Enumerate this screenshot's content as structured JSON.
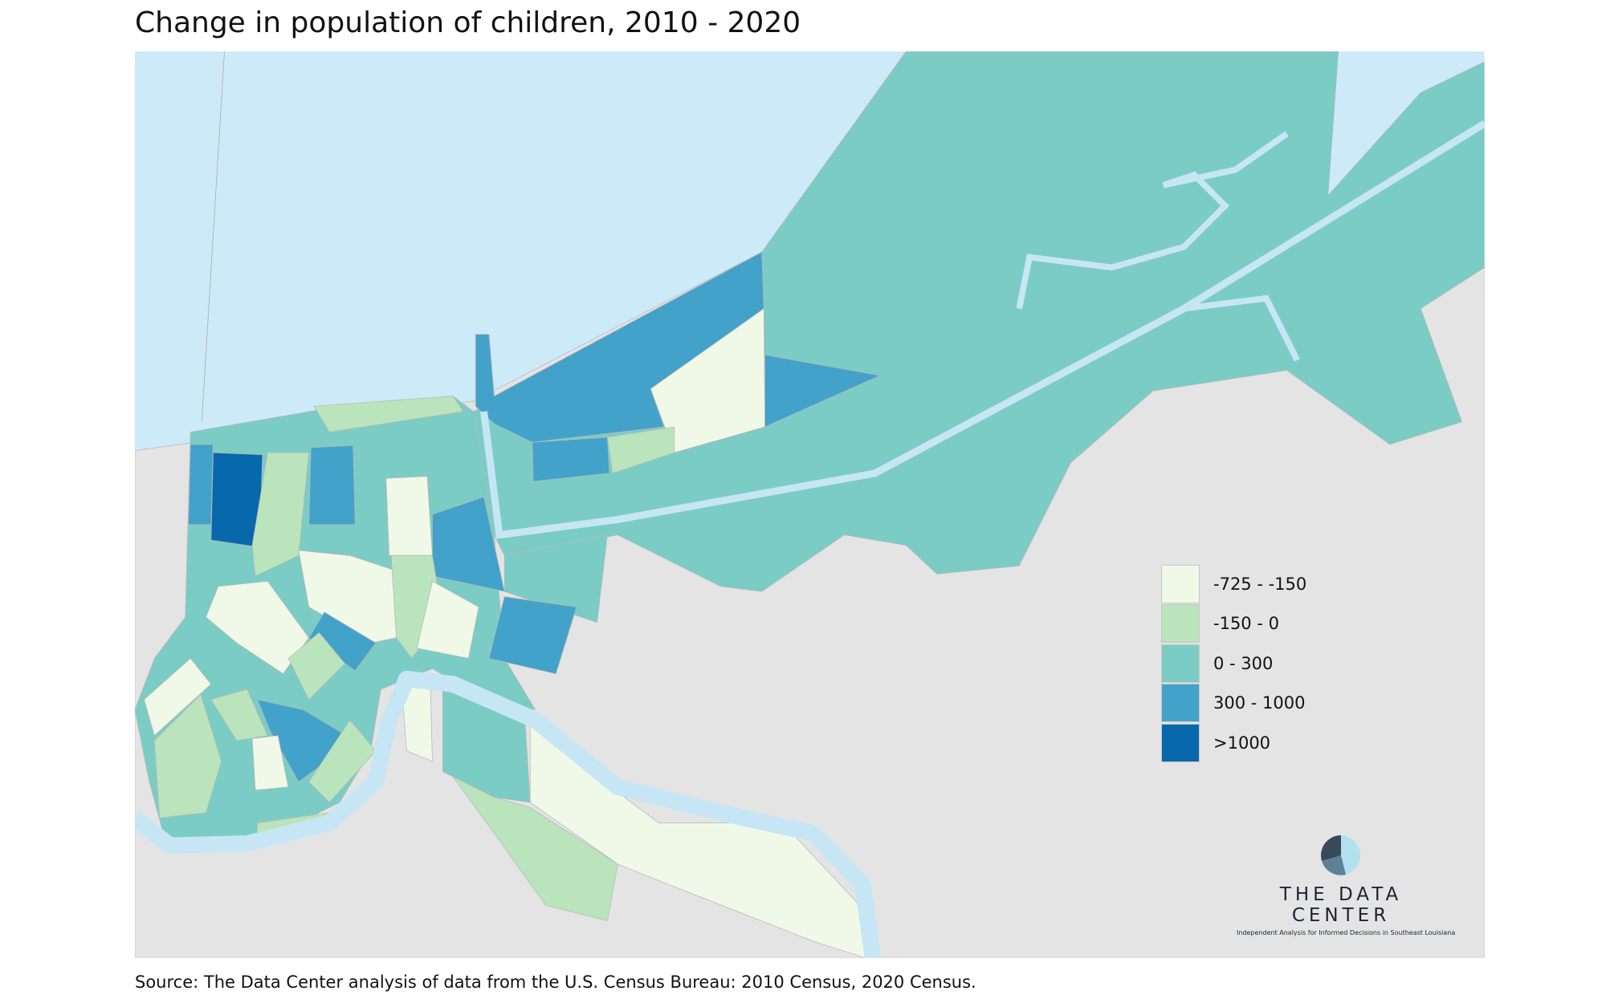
{
  "title": "Change in population of children, 2010 - 2020",
  "legend": {
    "items": [
      {
        "label": "-725 - -150",
        "color": "#f0f9e8"
      },
      {
        "label": "-150 - 0",
        "color": "#bae4bc"
      },
      {
        "label": "0 - 300",
        "color": "#7bccc4"
      },
      {
        "label": "300 - 1000",
        "color": "#43a2ca"
      },
      {
        "label": ">1000",
        "color": "#0868ac"
      }
    ]
  },
  "colors": {
    "water": "#cdeaf9",
    "land": "#e4e4e4",
    "river": "#c6e6f5"
  },
  "logo": {
    "name": "THE DATA CENTER",
    "tagline": "Independent Analysis for Informed Decisions in Southeast Louisiana"
  },
  "source": "Source: The Data Center analysis of data from the U.S. Census Bureau: 2010 Census, 2020 Census."
}
